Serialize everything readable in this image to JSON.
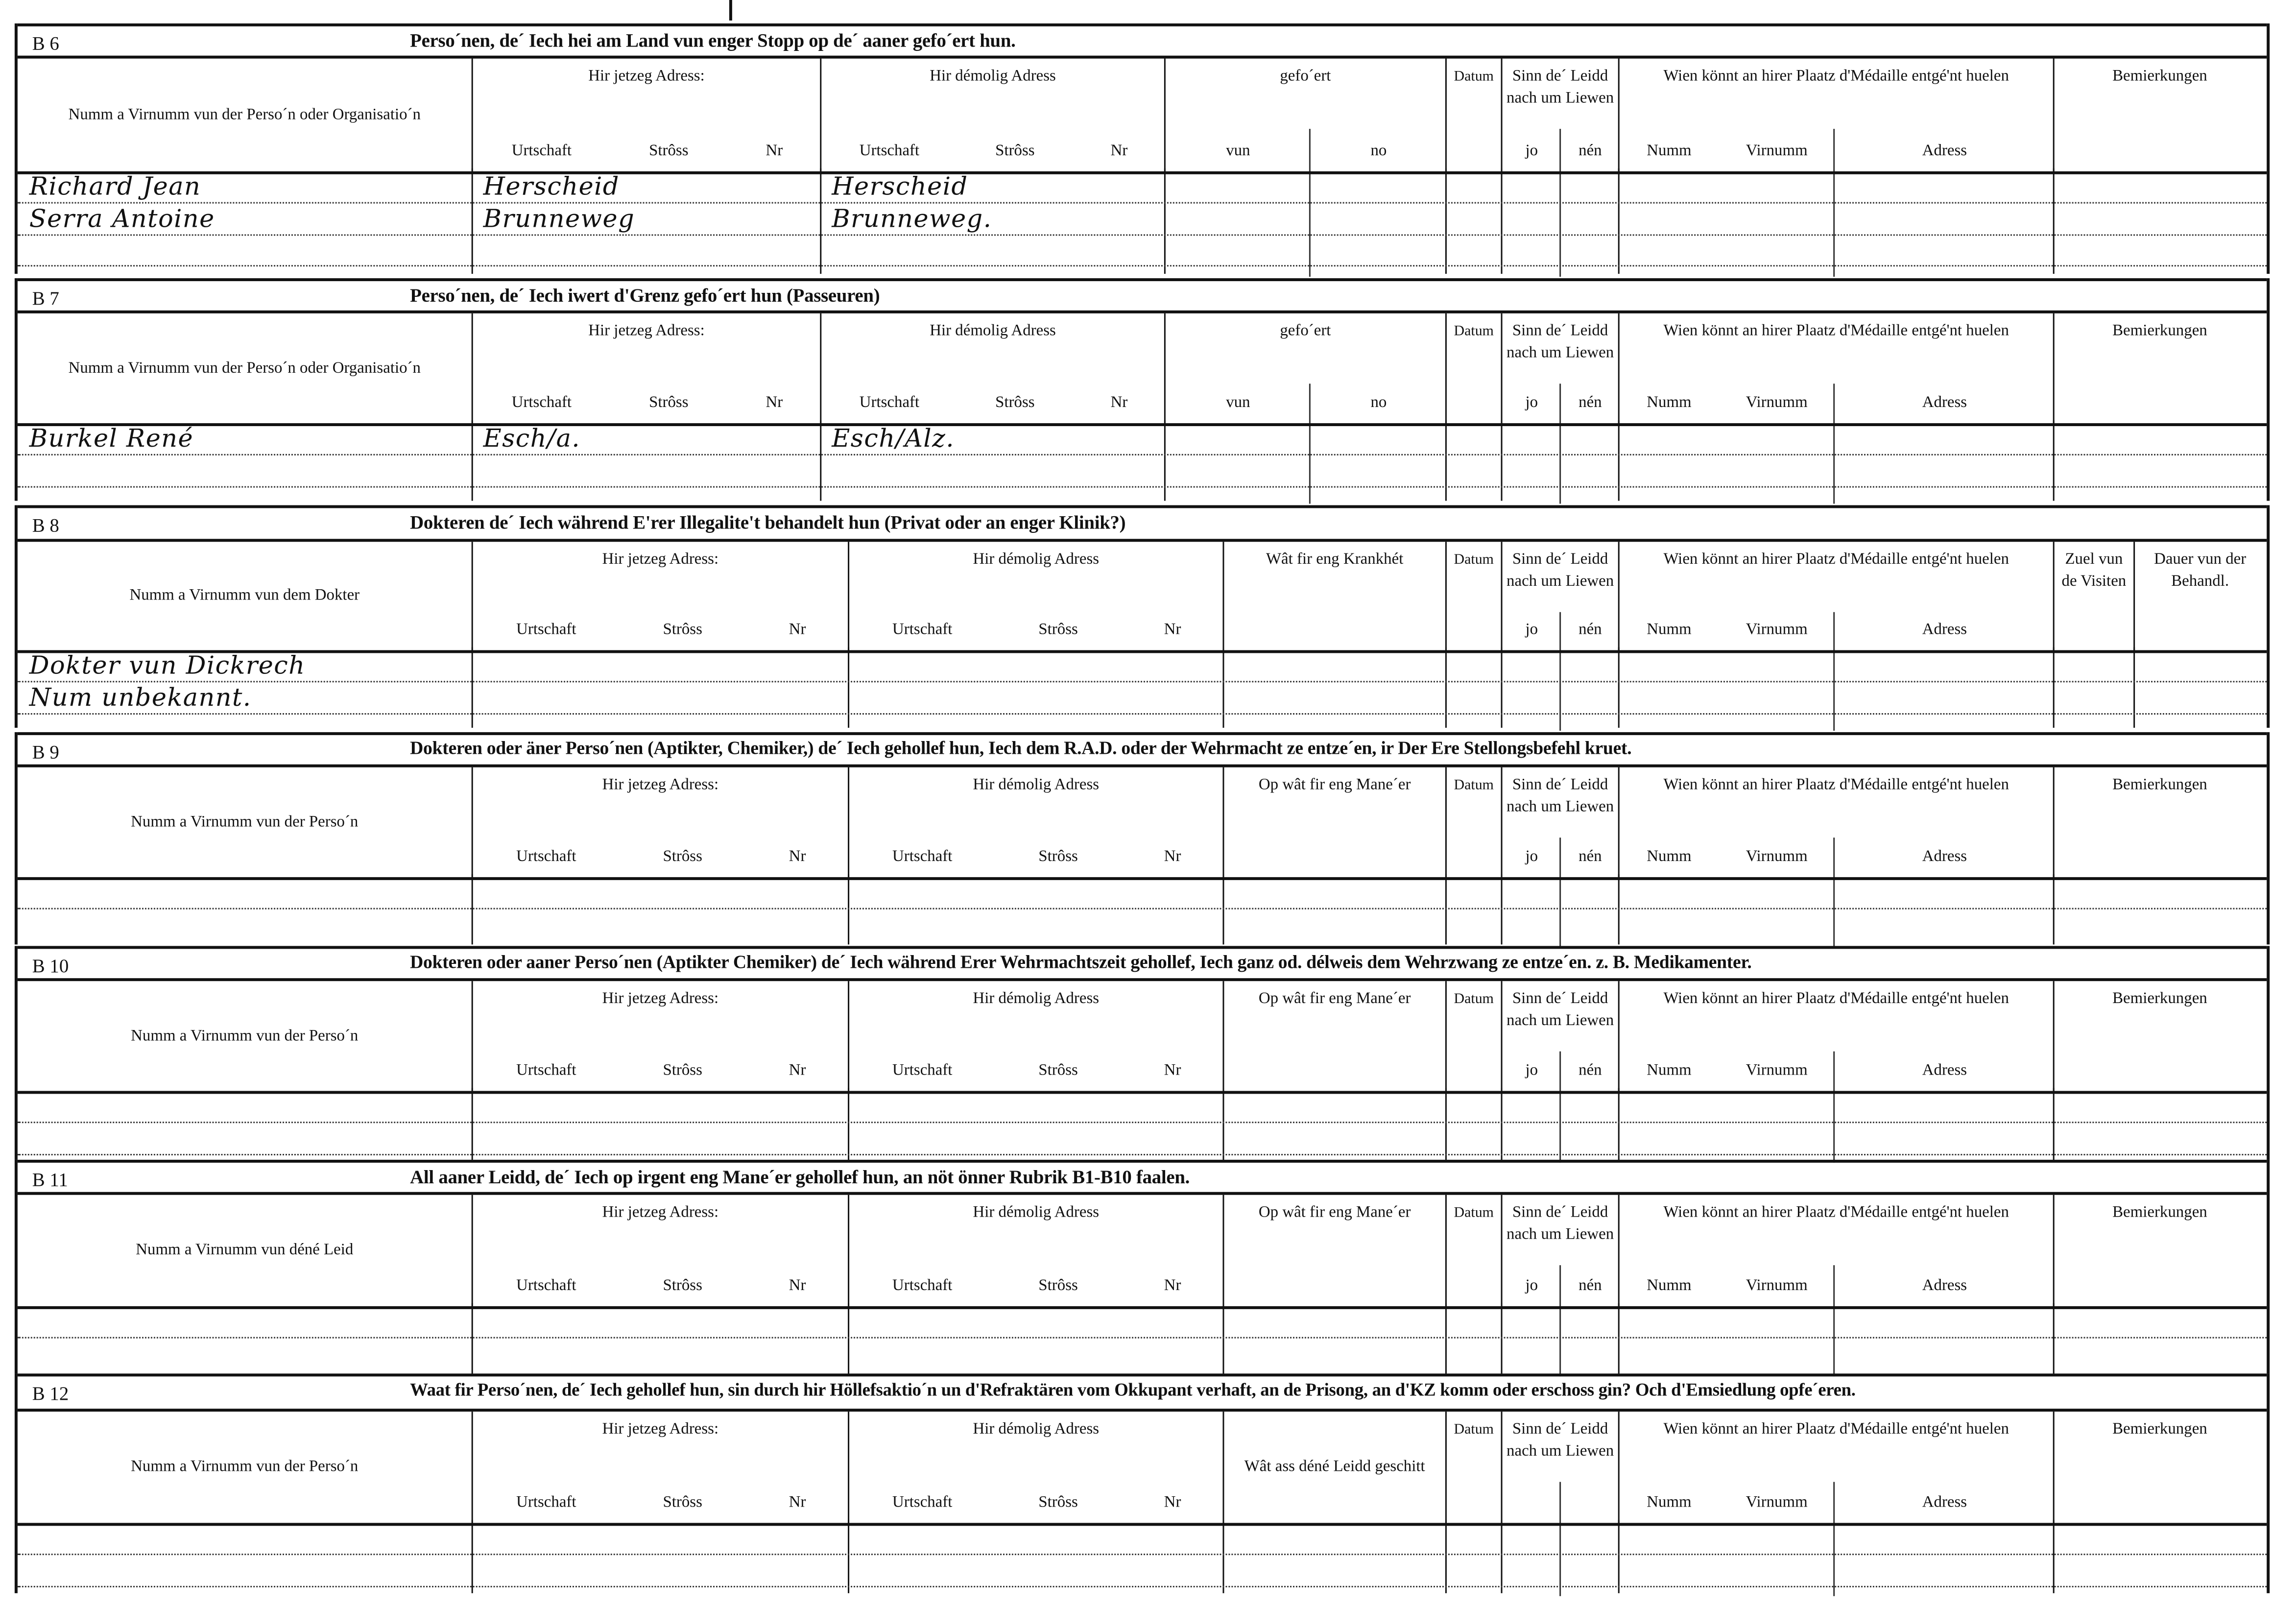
{
  "sections": [
    {
      "code": "B 6",
      "title": "Perso´nen, de´ Iech hei am Land vun enger Stopp  op de´ aaner gefo´ert hun.",
      "headers": [
        {
          "label": "Numm a Virnumm vun der Perso´n oder Organisatio´n"
        },
        {
          "label": "Hir jetzeg Adress:",
          "subs": [
            "Urtschaft",
            "Strôss",
            "Nr"
          ]
        },
        {
          "label": "Hir démolig Adress",
          "subs": [
            "Urtschaft",
            "Strôss",
            "Nr"
          ]
        },
        {
          "label": "gefo´ert",
          "subs": [
            "vun",
            "no"
          ]
        },
        {
          "label": "Datum"
        },
        {
          "label": "Sinn de´ Leidd nach um Liewen",
          "subs": [
            "jo",
            "nén"
          ]
        },
        {
          "label": "Wien könnt an hirer Plaatz d'Médaille entgé'nt huelen",
          "subs": [
            "Numm",
            "Virnumm",
            "Adress"
          ]
        },
        {
          "label": "Bemierkungen"
        }
      ],
      "entries": [
        {
          "col": 0,
          "line": 0,
          "text": "Richard Jean"
        },
        {
          "col": 0,
          "line": 1,
          "text": "Serra Antoine"
        },
        {
          "col": 1,
          "line": 0,
          "text": "Herscheid"
        },
        {
          "col": 1,
          "line": 1,
          "text": "Brunneweg"
        },
        {
          "col": 2,
          "line": 0,
          "text": "Herscheid"
        },
        {
          "col": 2,
          "line": 1,
          "text": "Brunneweg."
        }
      ]
    },
    {
      "code": "B 7",
      "title": "Perso´nen, de´ Iech iwert d'Grenz gefo´ert hun (Passeuren)",
      "headers": [
        {
          "label": "Numm a Virnumm vun der Perso´n oder Organisatio´n"
        },
        {
          "label": "Hir jetzeg Adress:",
          "subs": [
            "Urtschaft",
            "Strôss",
            "Nr"
          ]
        },
        {
          "label": "Hir démolig Adress",
          "subs": [
            "Urtschaft",
            "Strôss",
            "Nr"
          ]
        },
        {
          "label": "gefo´ert",
          "subs": [
            "vun",
            "no"
          ]
        },
        {
          "label": "Datum"
        },
        {
          "label": "Sinn de´ Leidd nach um Liewen",
          "subs": [
            "jo",
            "nén"
          ]
        },
        {
          "label": "Wien könnt an hirer Plaatz d'Médaille entgé'nt huelen",
          "subs": [
            "Numm",
            "Virnumm",
            "Adress"
          ]
        },
        {
          "label": "Bemierkungen"
        }
      ],
      "entries": [
        {
          "col": 0,
          "line": 0,
          "text": "Burkel René"
        },
        {
          "col": 1,
          "line": 0,
          "text": "Esch/a."
        },
        {
          "col": 2,
          "line": 0,
          "text": "Esch/Alz."
        }
      ]
    },
    {
      "code": "B 8",
      "title": "Dokteren de´ Iech während E'rer Illegalite't behandelt hun (Privat  oder an enger Klinik?)",
      "headers": [
        {
          "label": "Numm a Virnumm vun dem Dokter"
        },
        {
          "label": "Hir jetzeg Adress:",
          "subs": [
            "Urtschaft",
            "Strôss",
            "Nr"
          ]
        },
        {
          "label": "Hir démolig Adress",
          "subs": [
            "Urtschaft",
            "Strôss",
            "Nr"
          ]
        },
        {
          "label": "Wât fir eng Krankhét"
        },
        {
          "label": "Datum"
        },
        {
          "label": "Sinn de´ Leidd nach um Liewen",
          "subs": [
            "jo",
            "nén"
          ]
        },
        {
          "label": "Wien könnt an hirer Plaatz d'Médaille entgé'nt huelen",
          "subs": [
            "Numm",
            "Virnumm",
            "Adress"
          ]
        },
        {
          "label": "Zuel vun de Visiten"
        },
        {
          "label": "Dauer vun der Behandl."
        }
      ],
      "entries": [
        {
          "col": 0,
          "line": 0,
          "text": "Dokter vun Dickrech"
        },
        {
          "col": 0,
          "line": 1,
          "text": "Num unbekannt."
        }
      ]
    },
    {
      "code": "B 9",
      "title": "Dokteren oder äner Perso´nen (Aptikter, Chemiker,) de´ Iech gehollef hun, Iech dem R.A.D. oder der Wehrmacht ze entze´en, ir Der Ere Stellongsbefehl kruet.",
      "headers": [
        {
          "label": "Numm a Virnumm vun der Perso´n"
        },
        {
          "label": "Hir jetzeg Adress:",
          "subs": [
            "Urtschaft",
            "Strôss",
            "Nr"
          ]
        },
        {
          "label": "Hir démolig Adress",
          "subs": [
            "Urtschaft",
            "Strôss",
            "Nr"
          ]
        },
        {
          "label": "Op wât fir eng Mane´er"
        },
        {
          "label": "Datum"
        },
        {
          "label": "Sinn de´ Leidd nach um Liewen",
          "subs": [
            "jo",
            "nén"
          ]
        },
        {
          "label": "Wien könnt an hirer Plaatz d'Médaille entgé'nt huelen",
          "subs": [
            "Numm",
            "Virnumm",
            "Adress"
          ]
        },
        {
          "label": "Bemierkungen"
        }
      ],
      "entries": []
    },
    {
      "code": "B 10",
      "title": "Dokteren oder aaner Perso´nen (Aptikter Chemiker) de´ Iech während Erer Wehrmachtszeit gehollef, Iech ganz od. délweis dem Wehrzwang ze entze´en. z. B. Medikamenter.",
      "headers": [
        {
          "label": "Numm a Virnumm vun der Perso´n"
        },
        {
          "label": "Hir jetzeg Adress:",
          "subs": [
            "Urtschaft",
            "Strôss",
            "Nr"
          ]
        },
        {
          "label": "Hir démolig Adress",
          "subs": [
            "Urtschaft",
            "Strôss",
            "Nr"
          ]
        },
        {
          "label": "Op wât fir eng Mane´er"
        },
        {
          "label": "Datum"
        },
        {
          "label": "Sinn de´ Leidd nach um Liewen",
          "subs": [
            "jo",
            "nén"
          ]
        },
        {
          "label": "Wien könnt an hirer Plaatz d'Médaille entgé'nt huelen",
          "subs": [
            "Numm",
            "Virnumm",
            "Adress"
          ]
        },
        {
          "label": "Bemierkungen"
        }
      ],
      "entries": []
    },
    {
      "code": "B 11",
      "title": "All aaner Leidd, de´ Iech op irgent eng Mane´er gehollef hun, an nöt önner Rubrik B1-B10 faalen.",
      "headers": [
        {
          "label": "Numm a Virnumm vun déné Leid"
        },
        {
          "label": "Hir jetzeg Adress:",
          "subs": [
            "Urtschaft",
            "Strôss",
            "Nr"
          ]
        },
        {
          "label": "Hir démolig Adress",
          "subs": [
            "Urtschaft",
            "Strôss",
            "Nr"
          ]
        },
        {
          "label": "Op wât fir eng Mane´er"
        },
        {
          "label": "Datum"
        },
        {
          "label": "Sinn de´ Leidd nach um Liewen",
          "subs": [
            "jo",
            "nén"
          ]
        },
        {
          "label": "Wien könnt an hirer Plaatz d'Médaille entgé'nt huelen",
          "subs": [
            "Numm",
            "Virnumm",
            "Adress"
          ]
        },
        {
          "label": "Bemierkungen"
        }
      ],
      "entries": []
    },
    {
      "code": "B 12",
      "title": "Waat fir Perso´nen, de´ Iech gehollef hun, sin durch hir Höllefsaktio´n un d'Refraktären vom Okkupant verhaft, an de Prisong, an d'KZ komm oder  erschoss gin? Och d'Emsiedlung opfe´eren.",
      "headers": [
        {
          "label": "Numm a Virnumm vun der Perso´n"
        },
        {
          "label": "Hir jetzeg Adress:",
          "subs": [
            "Urtschaft",
            "Strôss",
            "Nr"
          ]
        },
        {
          "label": "Hir démolig Adress",
          "subs": [
            "Urtschaft",
            "Strôss",
            "Nr"
          ]
        },
        {
          "label": "Wât ass déné Leidd geschitt"
        },
        {
          "label": "Datum"
        },
        {
          "label": "Sinn de´ Leidd nach um Liewen"
        },
        {
          "label": "Wien könnt an hirer Plaatz d'Médaille entgé'nt huelen",
          "subs": [
            "Numm",
            "Virnumm",
            "Adress"
          ]
        },
        {
          "label": "Bemierkungen"
        }
      ],
      "entries": []
    }
  ]
}
